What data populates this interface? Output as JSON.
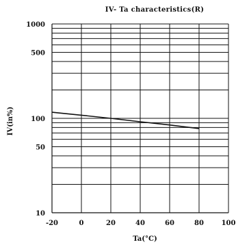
{
  "chart_data": {
    "type": "line",
    "title": "IV- Ta  characteristics(R)",
    "xlabel": "Ta(°C)",
    "ylabel": "IV(in%)",
    "xlim": [
      -20,
      100
    ],
    "ylim": [
      10,
      1000
    ],
    "y_scale": "log",
    "grid": true,
    "x_ticks": [
      -20,
      0,
      20,
      40,
      60,
      80,
      100
    ],
    "x_tick_labels": [
      "-20",
      "0",
      "20",
      "40",
      "60",
      "80",
      "100"
    ],
    "y_ticks": [
      10,
      50,
      100,
      500,
      1000
    ],
    "y_tick_labels": [
      "10",
      "50",
      "100",
      "500",
      "1000"
    ],
    "y_gridlines": [
      20,
      30,
      40,
      50,
      60,
      70,
      80,
      90,
      100,
      200,
      300,
      400,
      500,
      600,
      700,
      800,
      900,
      1000
    ],
    "series": [
      {
        "color": "#111111",
        "x": [
          -20,
          0,
          20,
          40,
          60,
          80
        ],
        "y": [
          116,
          108,
          100,
          92,
          85,
          78
        ]
      }
    ]
  }
}
